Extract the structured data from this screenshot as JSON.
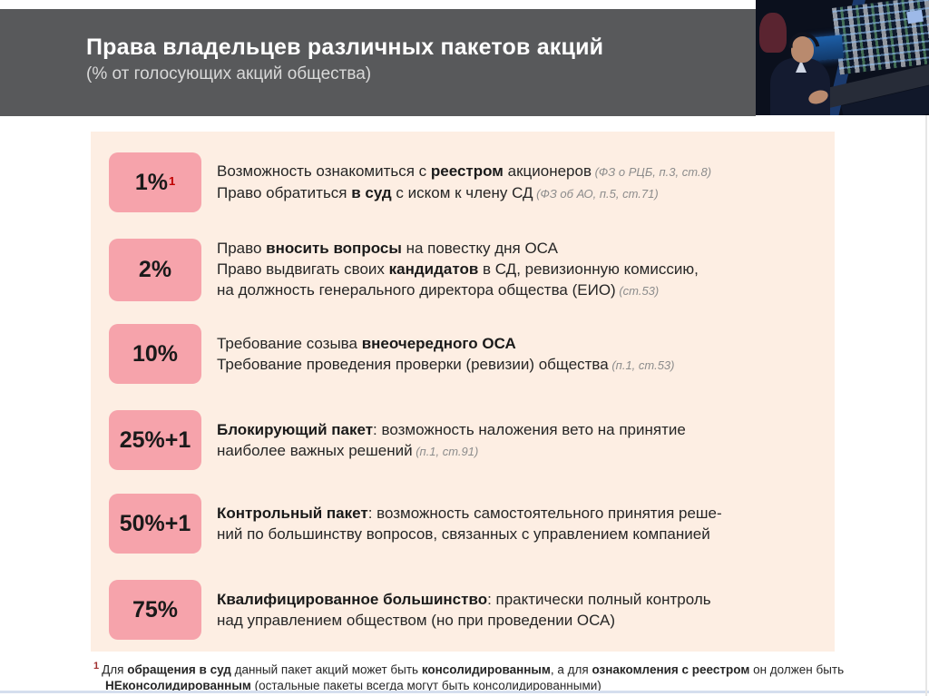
{
  "slide": {
    "title": "Права владельцев различных пакетов акций",
    "subtitle": "(% от голосующих акций общества)"
  },
  "rows": [
    {
      "badge": "1%",
      "badge_sup": "1",
      "lines": [
        {
          "segments": [
            {
              "t": "Возможность ознакомиться с "
            },
            {
              "t": "реестром",
              "b": true
            },
            {
              "t": " акционеров"
            }
          ],
          "ref": "(ФЗ о РЦБ, п.3, ст.8)"
        },
        {
          "segments": [
            {
              "t": "Право обратиться "
            },
            {
              "t": "в суд",
              "b": true
            },
            {
              "t": " с иском к члену СД"
            }
          ],
          "ref": "(ФЗ об АО, п.5, ст.71)"
        }
      ]
    },
    {
      "badge": "2%",
      "lines": [
        {
          "segments": [
            {
              "t": "Право "
            },
            {
              "t": "вносить вопросы",
              "b": true
            },
            {
              "t": " на повестку дня ОСА"
            }
          ]
        },
        {
          "segments": [
            {
              "t": "Право выдвигать своих "
            },
            {
              "t": "кандидатов",
              "b": true
            },
            {
              "t": " в СД, ревизионную комиссию,"
            }
          ]
        },
        {
          "segments": [
            {
              "t": "на должность генерального директора общества (ЕИО)"
            }
          ],
          "ref": "(ст.53)"
        }
      ]
    },
    {
      "badge": "10%",
      "lines": [
        {
          "segments": [
            {
              "t": "Требование созыва "
            },
            {
              "t": "внеочередного ОСА",
              "b": true
            }
          ]
        },
        {
          "segments": [
            {
              "t": "Требование проведения проверки (ревизии) общества"
            }
          ],
          "ref": "(п.1, ст.53)"
        }
      ]
    },
    {
      "badge": "25%+1",
      "lines": [
        {
          "segments": [
            {
              "t": "Блокирующий пакет",
              "b": true
            },
            {
              "t": ": возможность наложения вето на принятие"
            }
          ]
        },
        {
          "segments": [
            {
              "t": "наиболее важных решений"
            }
          ],
          "ref": "(п.1, ст.91)"
        }
      ]
    },
    {
      "badge": "50%+1",
      "lines": [
        {
          "segments": [
            {
              "t": "Контрольный пакет",
              "b": true
            },
            {
              "t": ": возможность самостоятельного принятия реше-"
            }
          ]
        },
        {
          "segments": [
            {
              "t": "ний по большинству вопросов, связанных с управлением компанией"
            }
          ]
        }
      ]
    },
    {
      "badge": "75%",
      "lines": [
        {
          "segments": [
            {
              "t": "Квалифицированное большинство",
              "b": true
            },
            {
              "t": ": практически полный контроль"
            }
          ]
        },
        {
          "segments": [
            {
              "t": "над управлением обществом (но при проведении ОСА)"
            }
          ]
        }
      ]
    }
  ],
  "footnote": {
    "marker": "1",
    "lines": [
      {
        "segments": [
          {
            "t": "Для "
          },
          {
            "t": "обращения в суд",
            "b": true
          },
          {
            "t": " данный пакет акций может быть "
          },
          {
            "t": "консолидированным",
            "b": true
          },
          {
            "t": ", а для "
          },
          {
            "t": "ознакомления с реестром",
            "b": true
          },
          {
            "t": " он должен быть"
          }
        ]
      },
      {
        "segments": [
          {
            "t": "НЕконсолидированным",
            "b": true
          },
          {
            "t": " (остальные пакеты всегда могут быть консолидированными)"
          }
        ]
      }
    ]
  },
  "colors": {
    "header_bg": "#58595b",
    "panel_bg": "#fdeee3",
    "badge_bg": "#f6a3ab",
    "accent_red": "#c00000",
    "reference_gray": "#8c8c8c",
    "bottom_divider": "#d5deee"
  }
}
